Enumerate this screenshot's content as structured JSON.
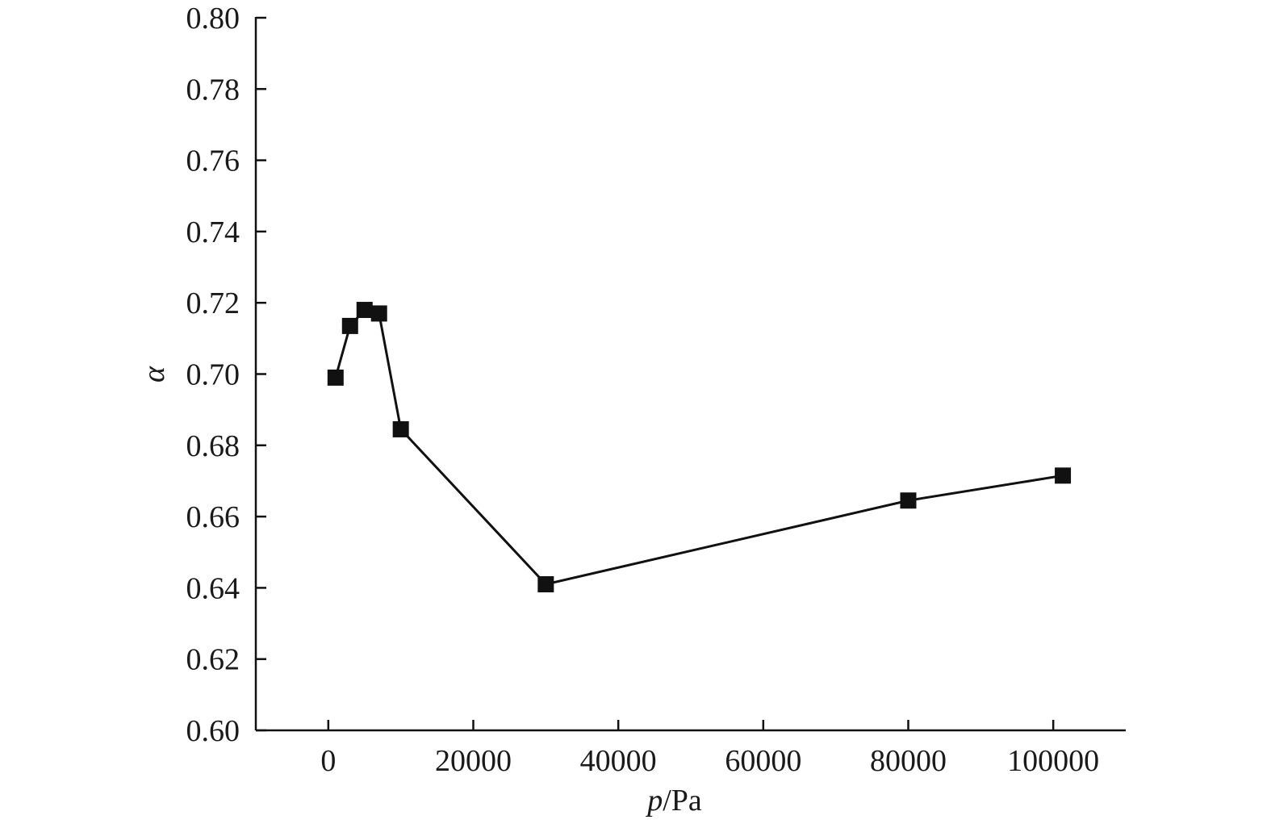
{
  "chart_data": {
    "type": "line",
    "xlabel_italic": "p",
    "xlabel_unit": "/Pa",
    "ylabel": "α",
    "xlim": [
      -10000,
      110000
    ],
    "ylim": [
      0.6,
      0.8
    ],
    "x_ticks": [
      0,
      20000,
      40000,
      60000,
      80000,
      100000
    ],
    "x_tick_labels": [
      "0",
      "20000",
      "40000",
      "60000",
      "80000",
      "100000"
    ],
    "y_ticks": [
      0.6,
      0.62,
      0.64,
      0.66,
      0.68,
      0.7,
      0.72,
      0.74,
      0.76,
      0.78,
      0.8
    ],
    "y_tick_labels": [
      "0.60",
      "0.62",
      "0.64",
      "0.66",
      "0.68",
      "0.70",
      "0.72",
      "0.74",
      "0.76",
      "0.78",
      "0.80"
    ],
    "grid": false,
    "legend": "none",
    "series": [
      {
        "marker": "square",
        "color": "#111111",
        "points": [
          {
            "x": 1000,
            "y": 0.699
          },
          {
            "x": 3000,
            "y": 0.7135
          },
          {
            "x": 5000,
            "y": 0.718
          },
          {
            "x": 7000,
            "y": 0.717
          },
          {
            "x": 10000,
            "y": 0.6845
          },
          {
            "x": 30000,
            "y": 0.641
          },
          {
            "x": 80000,
            "y": 0.6645
          },
          {
            "x": 101325,
            "y": 0.6715
          }
        ]
      }
    ]
  }
}
